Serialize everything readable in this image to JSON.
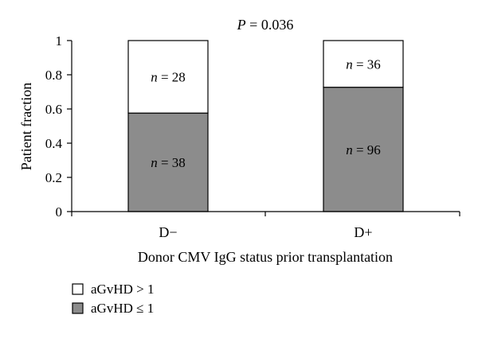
{
  "chart_data": {
    "type": "bar",
    "stacked": true,
    "title": "P = 0.036",
    "xlabel": "Donor CMV IgG status prior transplantation",
    "ylabel": "Patient fraction",
    "ylim": [
      0,
      1
    ],
    "yticks": [
      "0",
      "0.2",
      "0.4",
      "0.6",
      "0.8",
      "1"
    ],
    "categories": [
      "D−",
      "D+"
    ],
    "series": [
      {
        "name": "aGvHD ≤ 1",
        "color": "#8c8c8c",
        "values": [
          0.576,
          0.727
        ],
        "labels": [
          "n = 38",
          "n = 96"
        ]
      },
      {
        "name": "aGvHD > 1",
        "color": "#ffffff",
        "values": [
          0.424,
          0.273
        ],
        "labels": [
          "n = 28",
          "n = 36"
        ]
      }
    ],
    "legend": {
      "position": "bottom-left",
      "entries": [
        "aGvHD > 1",
        "aGvHD ≤ 1"
      ]
    },
    "grid": false
  }
}
